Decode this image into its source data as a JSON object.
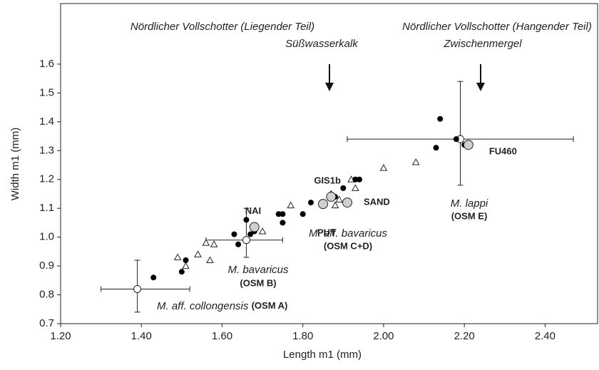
{
  "chart_data": {
    "type": "scatter",
    "x_label": "Length m1 (mm)",
    "y_label": "Width m1 (mm)",
    "xlim": [
      1.2,
      2.53
    ],
    "ylim": [
      0.7,
      1.81
    ],
    "xticks": [
      {
        "value": 1.2,
        "label": "1.20"
      },
      {
        "value": 1.4,
        "label": "1.40"
      },
      {
        "value": 1.6,
        "label": "1.60"
      },
      {
        "value": 1.8,
        "label": "1.80"
      },
      {
        "value": 2.0,
        "label": "2.00"
      },
      {
        "value": 2.2,
        "label": "2.20"
      },
      {
        "value": 2.4,
        "label": "2.40"
      }
    ],
    "yticks": [
      0.7,
      0.8,
      0.9,
      {
        "value": 1.0,
        "label": "1.0"
      },
      1.1,
      1.2,
      1.3,
      1.4,
      1.5,
      1.6
    ],
    "series": [
      {
        "marker": "dot",
        "color": "#000000",
        "x": [
          1.43,
          1.5,
          1.51,
          1.63,
          1.64,
          1.66,
          1.67,
          1.68,
          1.74,
          1.75,
          1.75,
          1.8,
          1.82,
          1.85,
          1.88,
          1.9,
          1.93,
          1.94,
          2.13,
          2.14,
          2.18,
          2.2
        ],
        "values": [
          0.86,
          0.88,
          0.92,
          1.01,
          0.975,
          1.06,
          1.01,
          1.02,
          1.08,
          1.08,
          1.05,
          1.08,
          1.12,
          1.11,
          1.14,
          1.17,
          1.2,
          1.2,
          1.31,
          1.41,
          1.34,
          1.32
        ]
      },
      {
        "marker": "triangle",
        "color": "#ffffff",
        "x": [
          1.49,
          1.51,
          1.54,
          1.56,
          1.57,
          1.58,
          1.7,
          1.77,
          1.85,
          1.87,
          1.88,
          1.89,
          1.92,
          1.93,
          2.0,
          2.08
        ],
        "values": [
          0.93,
          0.9,
          0.94,
          0.98,
          0.92,
          0.975,
          1.02,
          1.11,
          1.12,
          1.15,
          1.11,
          1.13,
          1.2,
          1.17,
          1.24,
          1.26
        ]
      },
      {
        "marker": "circle",
        "color": "#d0d0d0",
        "x": [
          1.68,
          1.85,
          1.87,
          1.91,
          2.21
        ],
        "values": [
          1.035,
          1.115,
          1.14,
          1.12,
          1.32
        ],
        "labels": [
          "NAI",
          "PUT",
          "GIS1b",
          "SAND",
          "FU460"
        ]
      },
      {
        "marker": "mean",
        "color": "#ffffff",
        "x": [
          1.39,
          1.66,
          2.19
        ],
        "values": [
          0.82,
          0.99,
          1.34
        ],
        "x_low": [
          1.3,
          1.56,
          1.91
        ],
        "x_high": [
          1.52,
          1.75,
          2.47
        ],
        "y_low": [
          0.74,
          0.93,
          1.18
        ],
        "y_high": [
          0.92,
          1.1,
          1.54
        ]
      }
    ],
    "headers": [
      "Nördlicher Vollschotter (Liegender Teil)",
      "Süßwasserkalk",
      "Nördlicher Vollschotter (Hangender Teil)",
      "Zwischenmergel"
    ],
    "groups": [
      {
        "name": "M. aff. collongensis",
        "unit": "(OSM A)"
      },
      {
        "name": "M. bavaricus",
        "unit": "(OSM B)"
      },
      {
        "name": "M. aff. bavaricus",
        "unit": "(OSM C+D)"
      },
      {
        "name": "M. lappi",
        "unit": "(OSM E)"
      }
    ]
  }
}
